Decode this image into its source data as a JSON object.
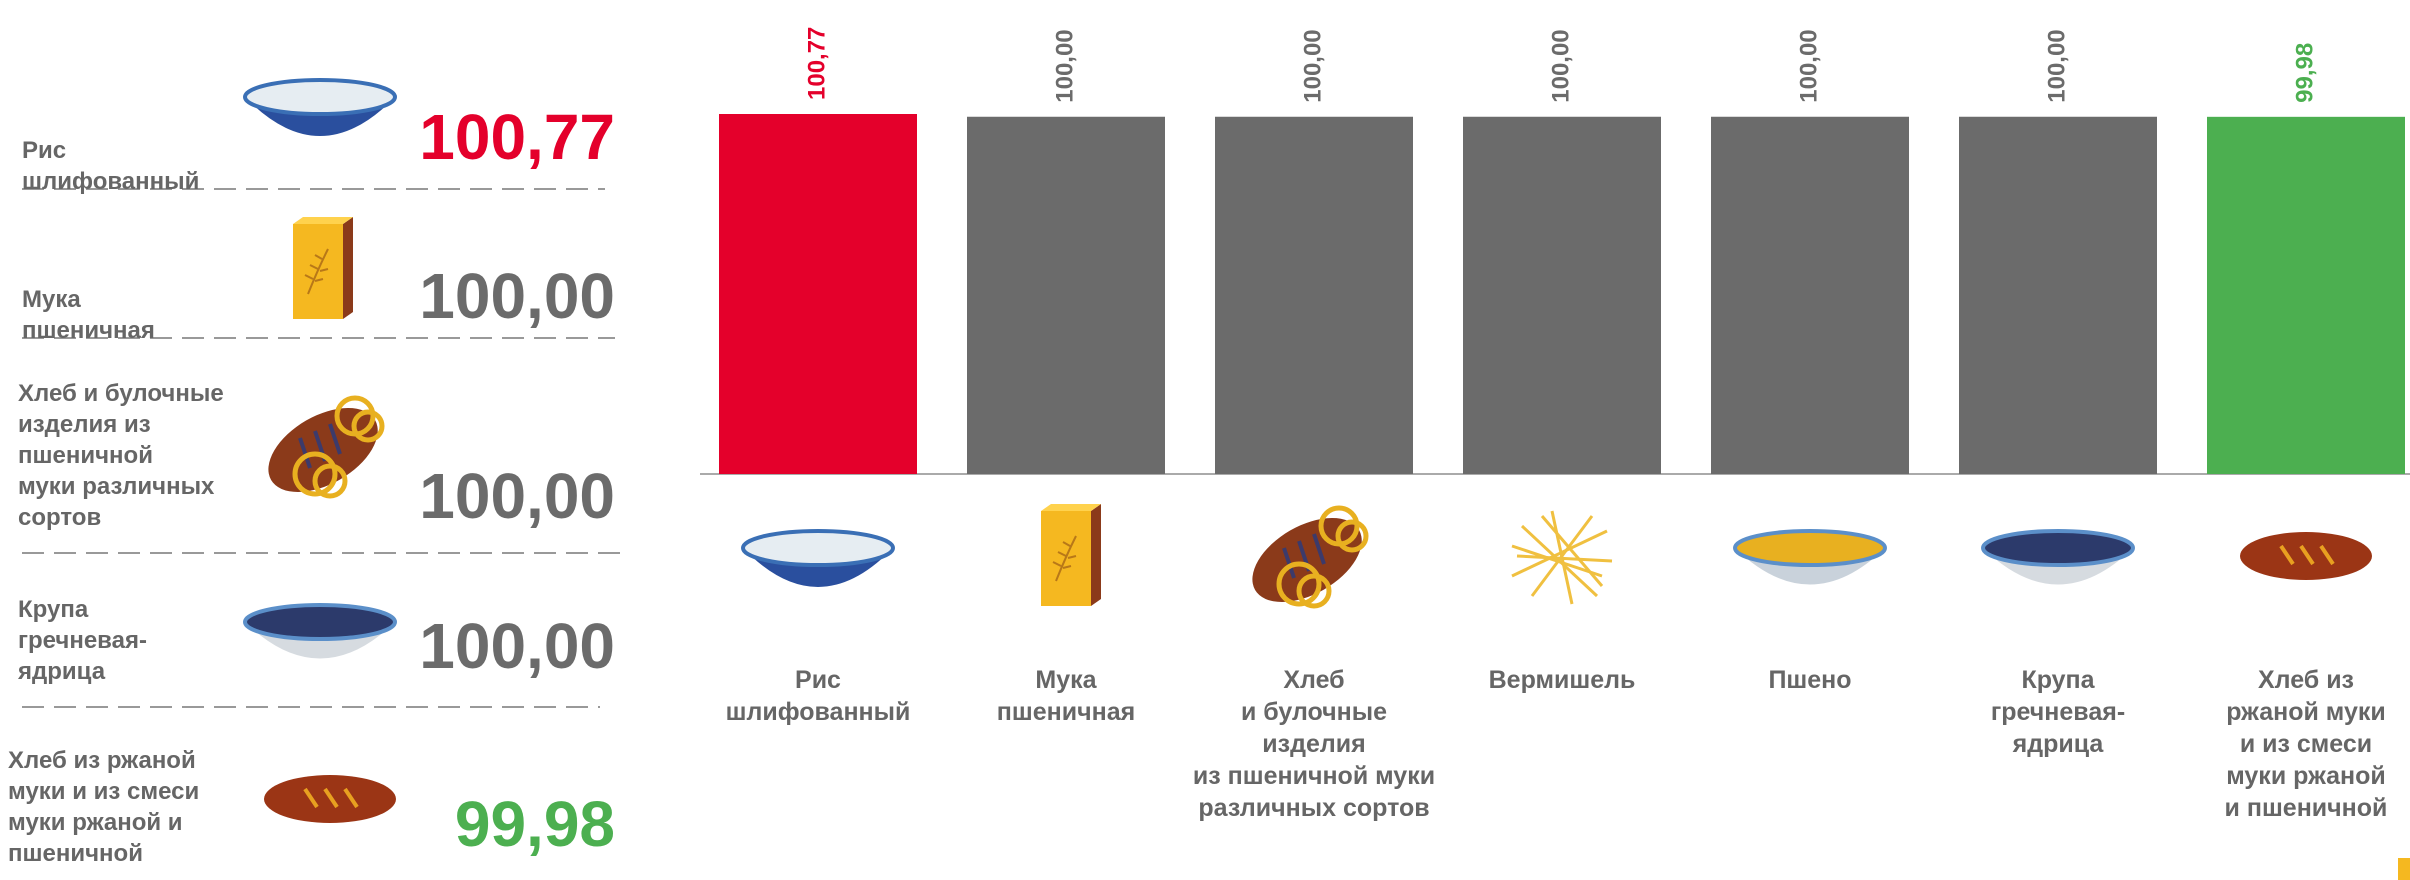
{
  "summary": {
    "items": [
      {
        "label": "Рис\nшлифованный",
        "value": "100,77",
        "color": "#e4002b"
      },
      {
        "label": "Мука\nпшеничная",
        "value": "100,00",
        "color": "#6b6b6b"
      },
      {
        "label": "Хлеб и булочные\nизделия из\nпшеничной\nмуки различных\nсортов",
        "value": "100,00",
        "color": "#6b6b6b"
      },
      {
        "label": "Крупа\nгречневая-\nядрица",
        "value": "100,00",
        "color": "#6b6b6b"
      },
      {
        "label": "Хлеб из  ржаной\nмуки и из смеси\nмуки ржаной и\nпшеничной",
        "value": "99,98",
        "color": "#4caf50"
      }
    ]
  },
  "chart_data": {
    "type": "bar",
    "categories": [
      "Рис\nшлифованный",
      "Мука\nпшеничная",
      "Хлеб\nи булочные\nизделия\nиз пшеничной муки\nразличных сортов",
      "Вермишель",
      "Пшено",
      "Крупа\nгречневая-\nядрица",
      "Хлеб из\nржаной муки\nи из смеси\nмуки ржаной\nи пшеничной"
    ],
    "values": [
      100.77,
      100,
      100,
      100,
      100,
      100,
      99.98
    ],
    "value_labels": [
      "100,77",
      "100,00",
      "100,00",
      "100,00",
      "100,00",
      "100,00",
      "99,98"
    ],
    "colors": [
      "#e4002b",
      "#6b6b6b",
      "#6b6b6b",
      "#6b6b6b",
      "#6b6b6b",
      "#6b6b6b",
      "#4caf50"
    ]
  }
}
